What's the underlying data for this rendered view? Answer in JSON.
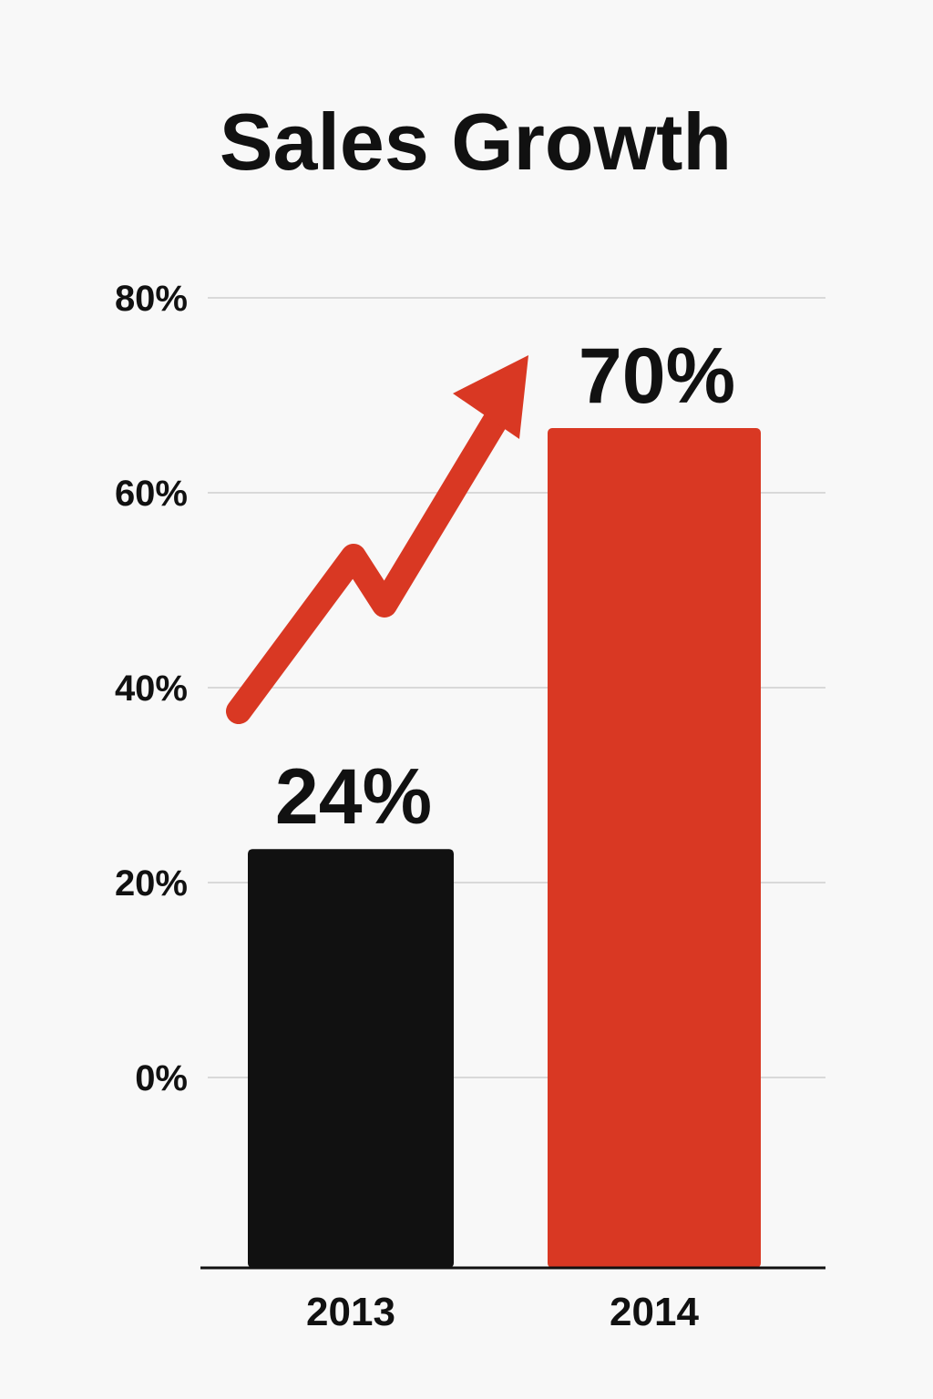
{
  "chart_data": {
    "type": "bar",
    "title": "Sales Growth",
    "categories": [
      "2013",
      "2014"
    ],
    "values": [
      24,
      70
    ],
    "data_labels": [
      "24%",
      "70%"
    ],
    "bar_colors": [
      "#111111",
      "#d93823"
    ],
    "ylim": [
      0,
      80
    ],
    "yticks": [
      0,
      20,
      40,
      60,
      80
    ],
    "ytick_labels": [
      "0%",
      "20%",
      "40%",
      "60%",
      "80%"
    ],
    "xlabel": "",
    "ylabel": "",
    "grid": true,
    "legend": "none",
    "annotations": [
      {
        "type": "trend-arrow-icon",
        "color": "#d93823",
        "direction": "up-right"
      }
    ]
  },
  "colors": {
    "background": "#f8f8f8",
    "gridline": "#d9d9d9",
    "axis": "#111111",
    "accent": "#d93823"
  }
}
